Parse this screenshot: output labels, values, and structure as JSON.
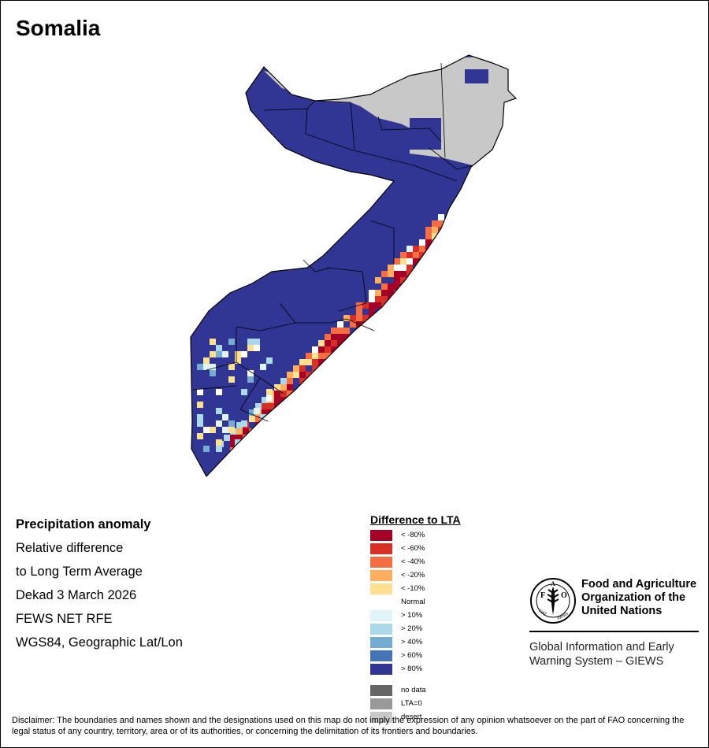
{
  "map": {
    "title": "Somalia"
  },
  "info": {
    "line1": "Precipitation anomaly",
    "line2": "Relative difference",
    "line3": "to Long Term Average",
    "line4": "Dekad 3 March 2026",
    "line5": "FEWS NET RFE",
    "line6": "WGS84, Geographic Lat/Lon"
  },
  "legend": {
    "title": "Difference to LTA",
    "classes": [
      {
        "label": "< -80%",
        "color": "#a50026"
      },
      {
        "label": "< -60%",
        "color": "#d73027"
      },
      {
        "label": "< -40%",
        "color": "#f46d43"
      },
      {
        "label": "< -20%",
        "color": "#fdae61"
      },
      {
        "label": "< -10%",
        "color": "#fee090"
      },
      {
        "label": "Normal",
        "color": "#ffffff"
      },
      {
        "label": "> 10%",
        "color": "#e0f3f8"
      },
      {
        "label": "> 20%",
        "color": "#abd9e9"
      },
      {
        "label": "> 40%",
        "color": "#74add1"
      },
      {
        "label": "> 60%",
        "color": "#4575b4"
      },
      {
        "label": "> 80%",
        "color": "#313695"
      }
    ],
    "extra": [
      {
        "label": "no data",
        "color": "#666666"
      },
      {
        "label": "LTA=0",
        "color": "#999999"
      },
      {
        "label": "desert",
        "color": "#c8c8c8"
      }
    ]
  },
  "logo": {
    "emblem_text": "FAO",
    "motto": "FIAT PANIS",
    "org_line1": "Food and Agriculture",
    "org_line2": "Organization of the",
    "org_line3": "United Nations",
    "system_line1": "Global Information and Early",
    "system_line2": "Warning System – GIEWS"
  },
  "disclaimer": "Disclaimer: The boundaries and names shown and the designations used on this map do not imply the expression of any opinion whatsoever on the part of FAO concerning the legal status of any country, territory, area or of its authorities, or concerning the delimitation of its frontiers and boundaries."
}
